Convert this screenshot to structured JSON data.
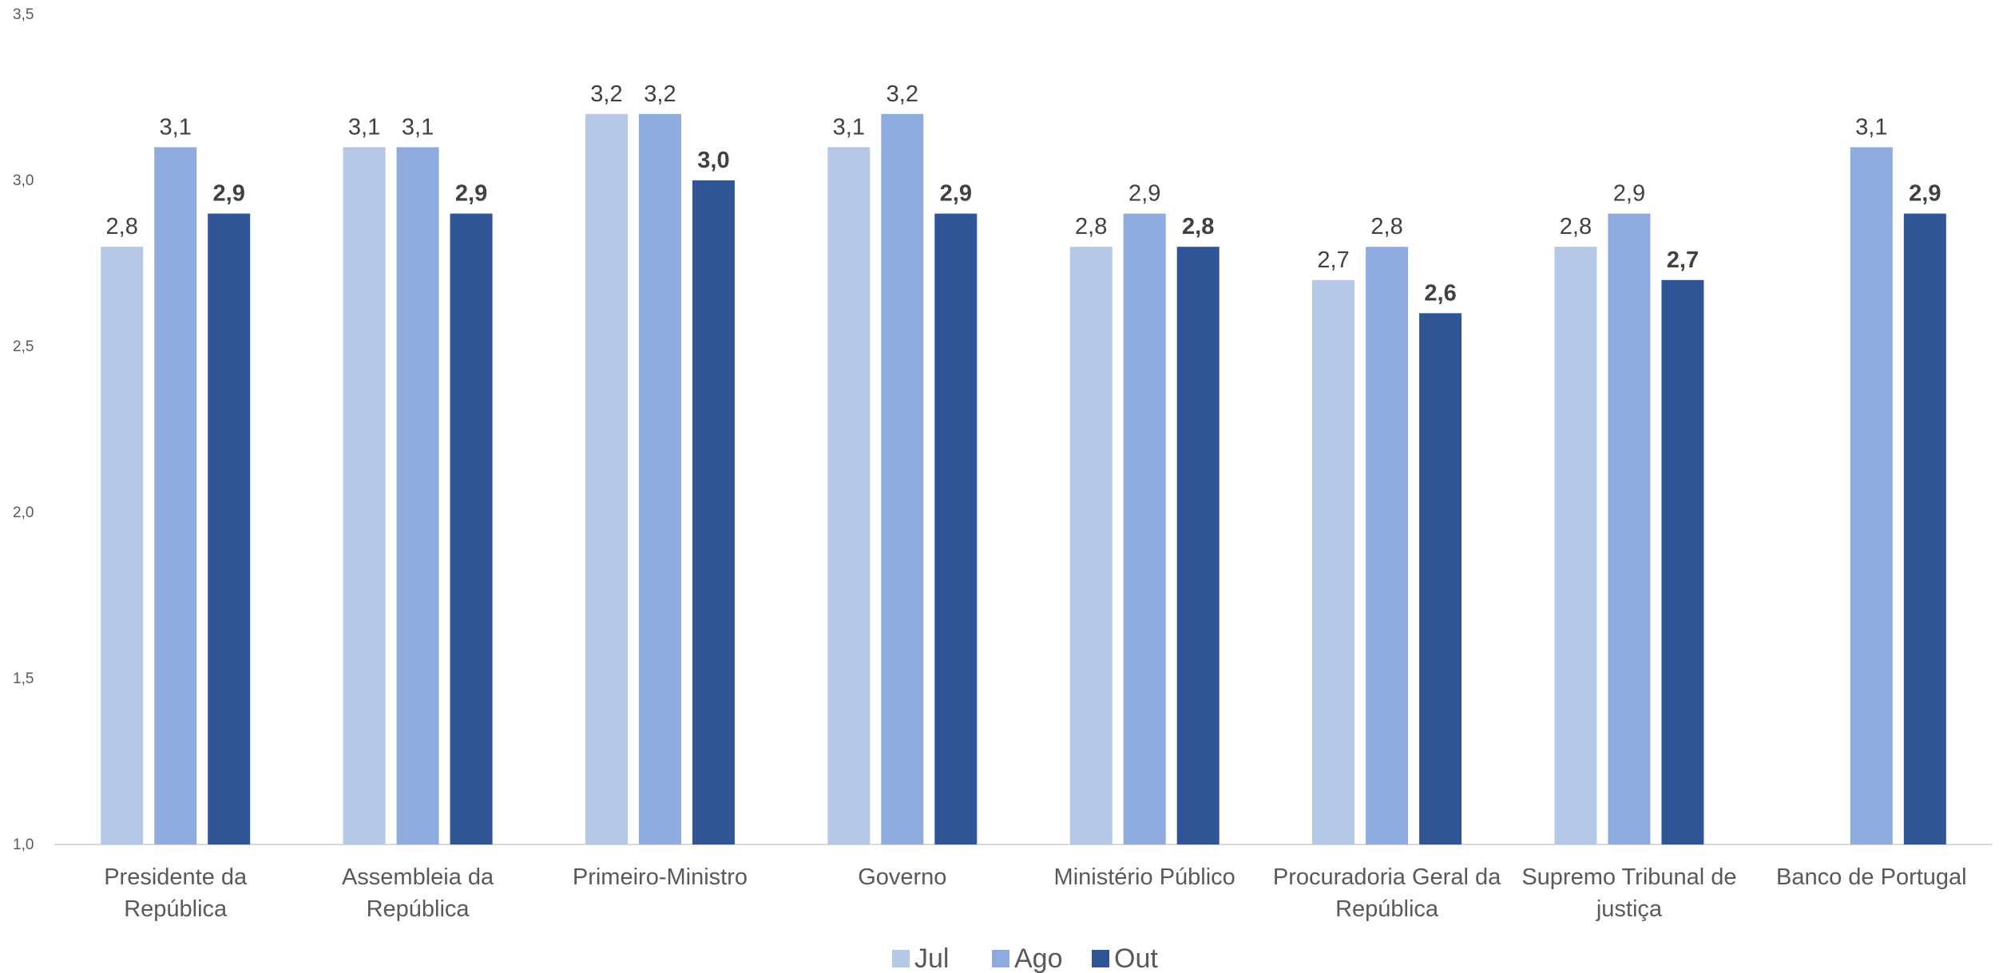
{
  "chart_data": {
    "type": "bar",
    "title": "",
    "xlabel": "",
    "ylabel": "",
    "ylim": [
      1.0,
      3.5
    ],
    "yticks": [
      "1,0",
      "1,5",
      "2,0",
      "2,5",
      "3,0",
      "3,5"
    ],
    "grid": false,
    "legend_position": "bottom",
    "categories": [
      [
        "Presidente da",
        "República"
      ],
      [
        "Assembleia da",
        "República"
      ],
      [
        "Primeiro-Ministro"
      ],
      [
        "Governo"
      ],
      [
        "Ministério Público"
      ],
      [
        "Procuradoria Geral da",
        "República"
      ],
      [
        "Supremo Tribunal de",
        "justiça"
      ],
      [
        "Banco de Portugal"
      ]
    ],
    "series": [
      {
        "name": "Jul",
        "color": "#b4c7e7",
        "bold_labels": false,
        "values": [
          2.8,
          3.1,
          3.2,
          3.1,
          2.8,
          2.7,
          2.8,
          null
        ],
        "labels": [
          "2,8",
          "3,1",
          "3,2",
          "3,1",
          "2,8",
          "2,7",
          "2,8",
          ""
        ]
      },
      {
        "name": "Ago",
        "color": "#8faadc",
        "bold_labels": false,
        "values": [
          3.1,
          3.1,
          3.2,
          3.2,
          2.9,
          2.8,
          2.9,
          3.1
        ],
        "labels": [
          "3,1",
          "3,1",
          "3,2",
          "3,2",
          "2,9",
          "2,8",
          "2,9",
          "3,1"
        ]
      },
      {
        "name": "Out",
        "color": "#2f5597",
        "bold_labels": true,
        "values": [
          2.9,
          2.9,
          3.0,
          2.9,
          2.8,
          2.6,
          2.7,
          2.9
        ],
        "labels": [
          "2,9",
          "2,9",
          "3,0",
          "2,9",
          "2,8",
          "2,6",
          "2,7",
          "2,9"
        ]
      }
    ]
  }
}
